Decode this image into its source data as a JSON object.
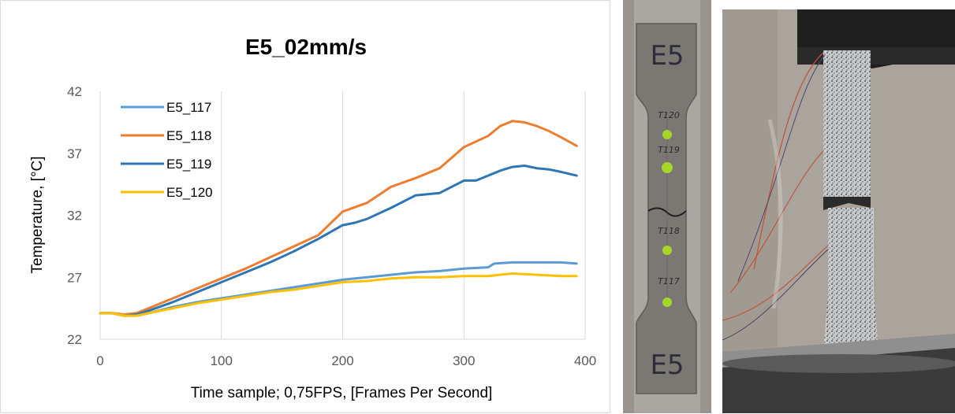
{
  "chart_data": {
    "type": "line",
    "title": "E5_02mm/s",
    "xlabel": "Time sample; 0,75FPS, [Frames Per Second]",
    "ylabel": "Temperature, [°C]",
    "xlim": [
      0,
      400
    ],
    "ylim": [
      22,
      42
    ],
    "x_ticks": [
      "0",
      "100",
      "200",
      "300",
      "400"
    ],
    "y_ticks": [
      "22",
      "27",
      "32",
      "37",
      "42"
    ],
    "grid": "vertical",
    "legend_position": "top-left",
    "series": [
      {
        "name": "E5_117",
        "color": "#5b9bd5",
        "x": [
          0,
          10,
          20,
          30,
          40,
          60,
          80,
          100,
          120,
          140,
          160,
          180,
          200,
          220,
          240,
          260,
          280,
          300,
          320,
          325,
          340,
          360,
          380,
          393
        ],
        "y": [
          24.1,
          24.1,
          23.9,
          23.9,
          24.1,
          24.6,
          25.0,
          25.3,
          25.6,
          25.9,
          26.2,
          26.5,
          26.8,
          27.0,
          27.2,
          27.4,
          27.5,
          27.7,
          27.8,
          28.1,
          28.2,
          28.2,
          28.2,
          28.1
        ]
      },
      {
        "name": "E5_118",
        "color": "#ed7d31",
        "x": [
          0,
          10,
          20,
          30,
          40,
          60,
          80,
          100,
          120,
          140,
          160,
          180,
          200,
          220,
          240,
          260,
          280,
          300,
          320,
          330,
          340,
          350,
          360,
          370,
          380,
          393
        ],
        "y": [
          24.1,
          24.1,
          24.0,
          24.1,
          24.5,
          25.3,
          26.1,
          26.9,
          27.7,
          28.6,
          29.5,
          30.4,
          32.3,
          33.0,
          34.3,
          35.0,
          35.8,
          37.5,
          38.4,
          39.2,
          39.6,
          39.5,
          39.2,
          38.8,
          38.3,
          37.6
        ]
      },
      {
        "name": "E5_119",
        "color": "#2e75b6",
        "x": [
          0,
          10,
          20,
          30,
          40,
          60,
          80,
          100,
          120,
          140,
          160,
          180,
          200,
          210,
          220,
          240,
          260,
          280,
          300,
          310,
          320,
          330,
          340,
          350,
          360,
          370,
          380,
          393
        ],
        "y": [
          24.1,
          24.1,
          23.9,
          24.0,
          24.3,
          25.0,
          25.8,
          26.6,
          27.4,
          28.2,
          29.1,
          30.1,
          31.2,
          31.4,
          31.7,
          32.6,
          33.6,
          33.8,
          34.8,
          34.8,
          35.2,
          35.6,
          35.9,
          36.0,
          35.8,
          35.7,
          35.5,
          35.2
        ]
      },
      {
        "name": "E5_120",
        "color": "#ffc000",
        "x": [
          0,
          10,
          20,
          30,
          40,
          60,
          80,
          100,
          120,
          140,
          160,
          180,
          200,
          220,
          240,
          260,
          280,
          300,
          320,
          330,
          340,
          360,
          380,
          393
        ],
        "y": [
          24.1,
          24.1,
          23.9,
          23.9,
          24.1,
          24.5,
          24.9,
          25.2,
          25.5,
          25.8,
          26.0,
          26.3,
          26.6,
          26.7,
          26.9,
          27.0,
          27.0,
          27.1,
          27.1,
          27.2,
          27.3,
          27.2,
          27.1,
          27.1
        ]
      }
    ]
  },
  "photo_specimen": {
    "top_marker": "E5",
    "bottom_marker": "E5",
    "tags": [
      "T120",
      "T119",
      "T118",
      "T117"
    ]
  },
  "colors": {
    "grid": "#d9d9d9",
    "specimen_dot": "#a7d52a",
    "machine_dark": "#3a3a3a",
    "wire": "#c0513b"
  }
}
